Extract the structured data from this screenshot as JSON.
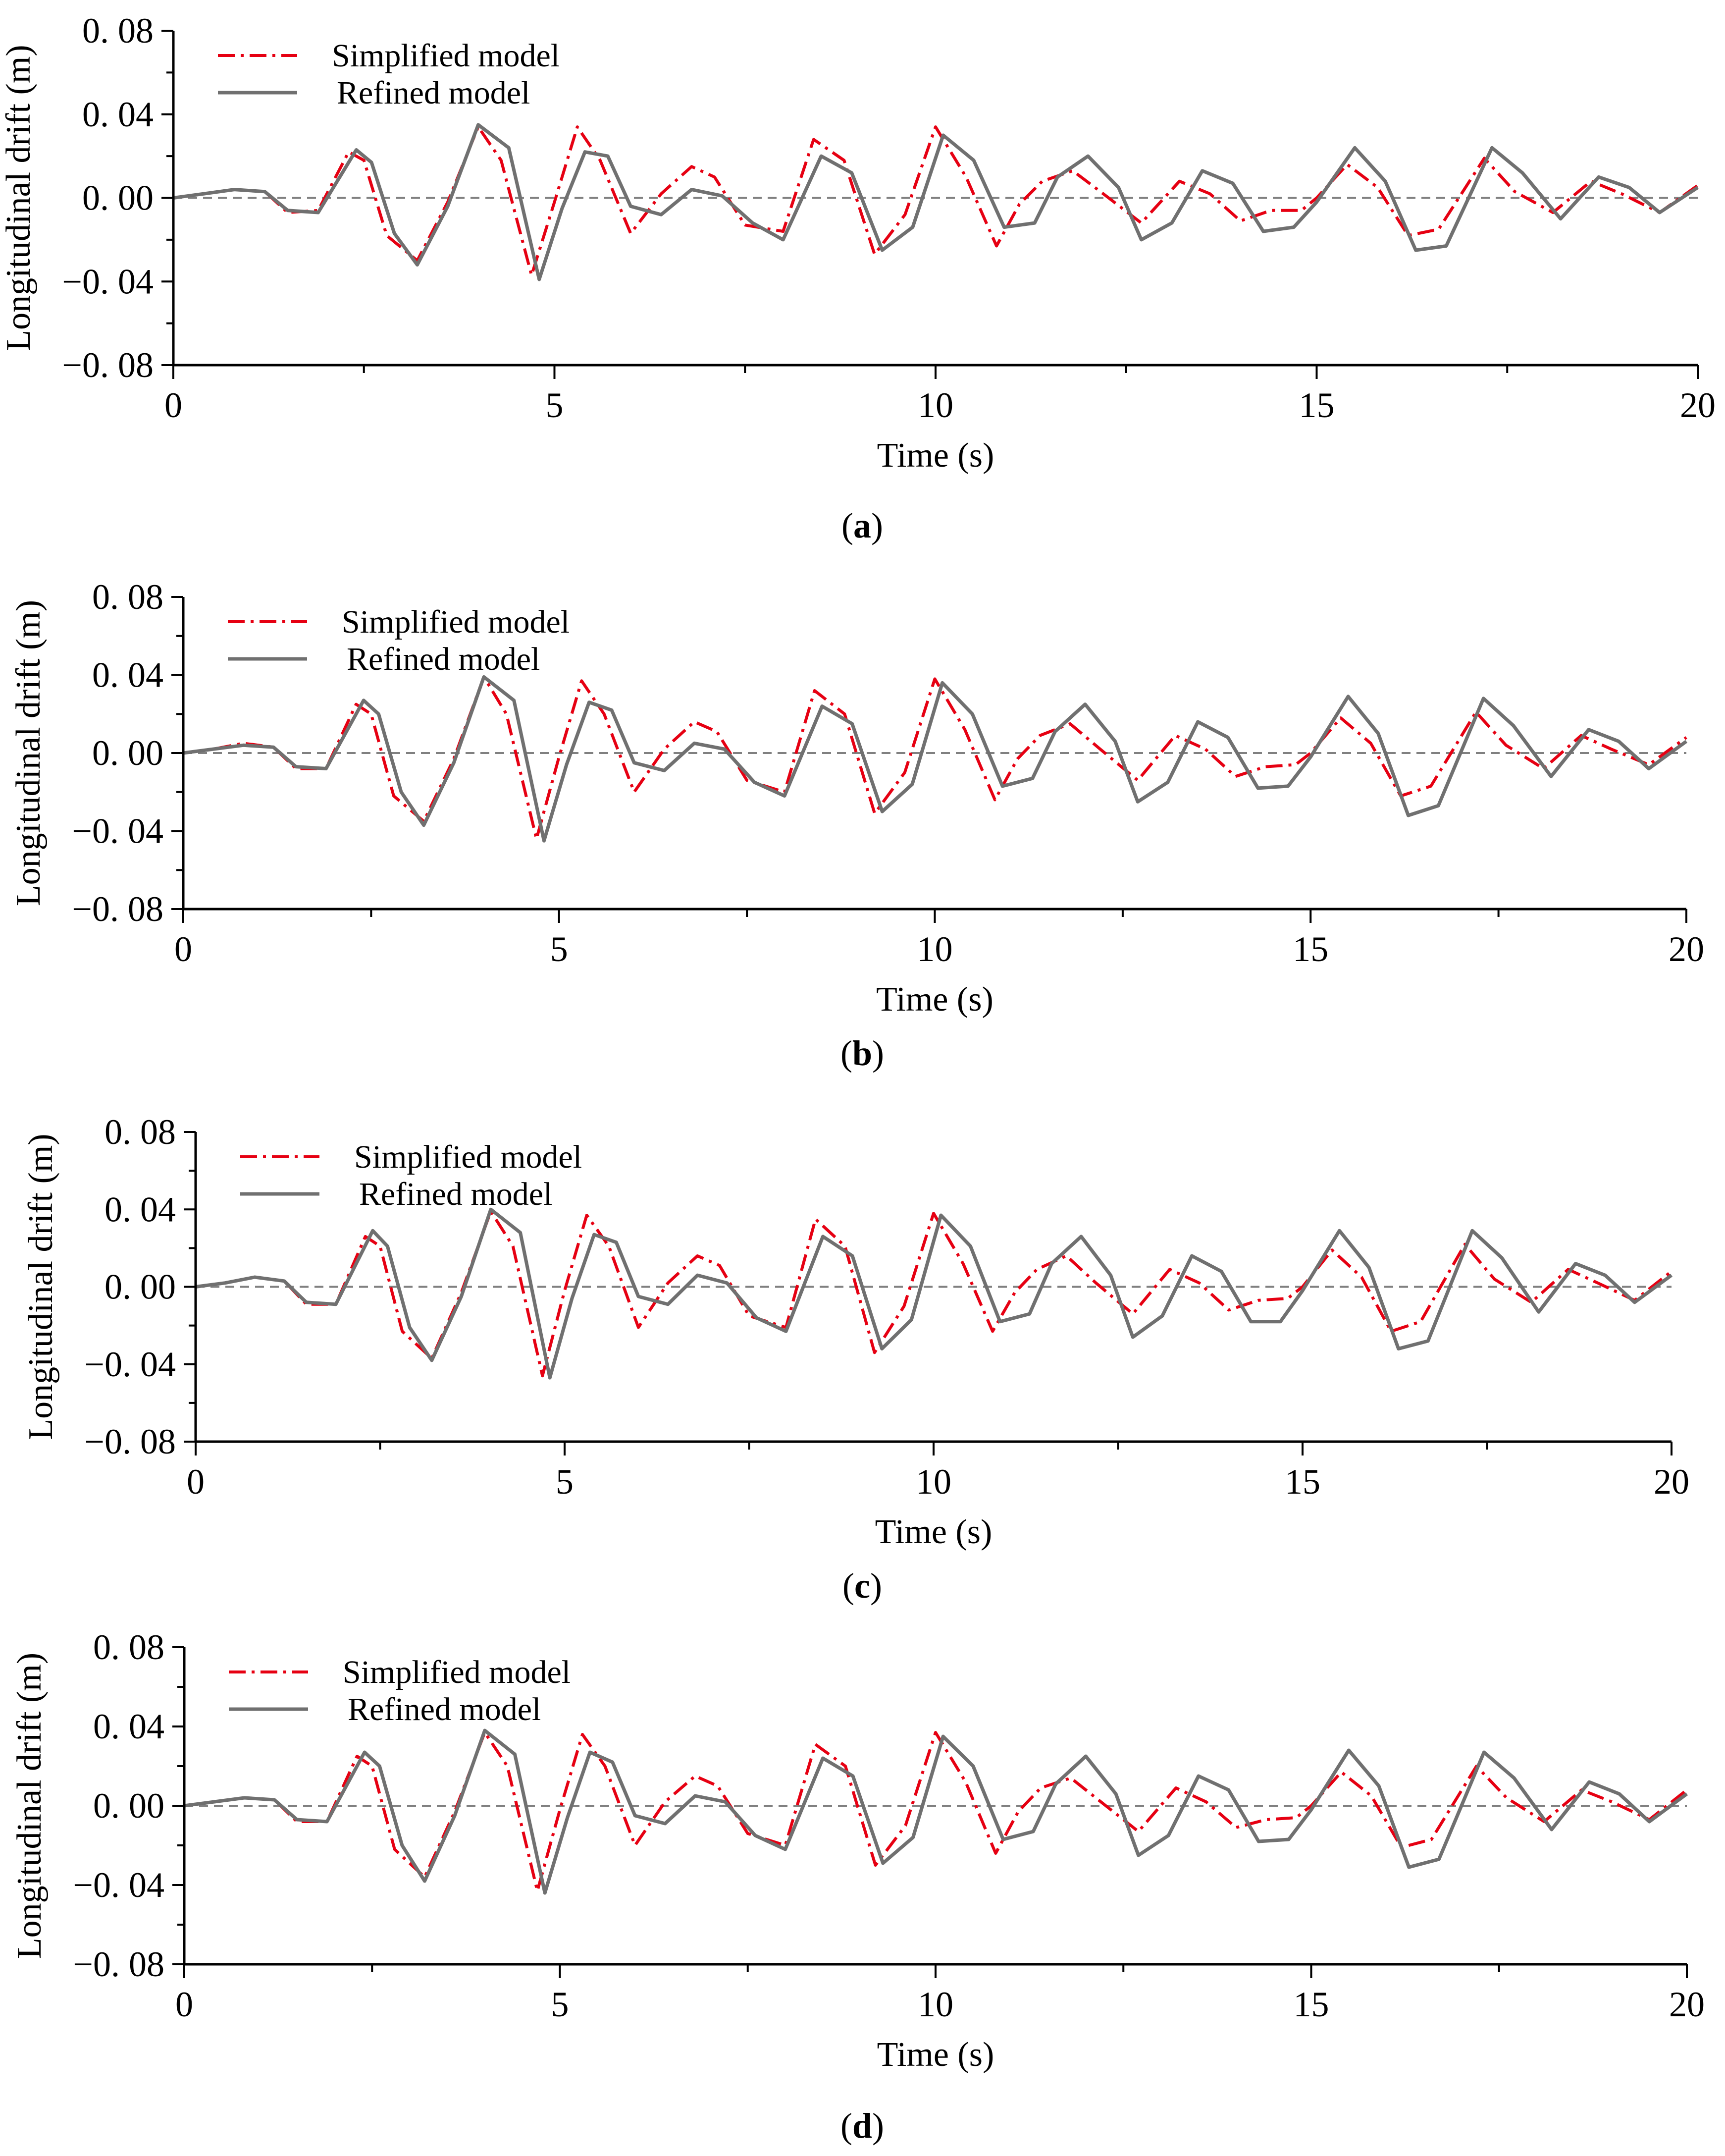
{
  "figure": {
    "captions": [
      "(a)",
      "(b)",
      "(c)",
      "(d)"
    ]
  },
  "colors": {
    "simplified": "#e60012",
    "refined": "#707070",
    "zero_line": "#808080",
    "axis": "#000000"
  },
  "chart_data": [
    {
      "type": "line",
      "caption": "(a)",
      "xlabel": "Time (s)",
      "ylabel": "Longitudinal drift (m)",
      "xlim": [
        0,
        20
      ],
      "ylim": [
        -0.08,
        0.08
      ],
      "xticks": [
        0,
        5,
        10,
        15,
        20
      ],
      "xtick_labels": [
        "0",
        "5",
        "10",
        "15",
        "20"
      ],
      "yticks": [
        -0.08,
        -0.04,
        0.0,
        0.04,
        0.08
      ],
      "ytick_labels": [
        "−0. 08",
        "−0. 04",
        "0. 00",
        "0. 04",
        "0. 08"
      ],
      "legend": {
        "position": "top-left",
        "entries": [
          "Simplified model",
          "Refined model"
        ]
      },
      "series": [
        {
          "name": "Simplified model",
          "style": "dash-dot",
          "x": [
            0,
            0.4,
            0.8,
            1.2,
            1.5,
            1.9,
            2.3,
            2.5,
            2.8,
            3.2,
            3.6,
            4.0,
            4.3,
            4.7,
            5.0,
            5.3,
            5.6,
            6.0,
            6.4,
            6.8,
            7.1,
            7.5,
            8.0,
            8.4,
            8.8,
            9.2,
            9.6,
            10.0,
            10.4,
            10.8,
            11.1,
            11.4,
            11.8,
            12.2,
            12.7,
            13.2,
            13.6,
            14.0,
            14.4,
            14.8,
            15.0,
            15.4,
            15.8,
            16.2,
            16.6,
            17.2,
            17.6,
            18.1,
            18.6,
            19.0,
            19.5,
            20.0
          ],
          "y": [
            0,
            0.002,
            0.004,
            0.003,
            -0.007,
            -0.006,
            0.022,
            0.018,
            -0.018,
            -0.03,
            -0.002,
            0.034,
            0.018,
            -0.037,
            -0.002,
            0.034,
            0.018,
            -0.017,
            0.002,
            0.015,
            0.01,
            -0.013,
            -0.016,
            0.028,
            0.018,
            -0.027,
            -0.008,
            0.034,
            0.01,
            -0.023,
            -0.003,
            0.008,
            0.013,
            0.002,
            -0.012,
            0.008,
            0.002,
            -0.011,
            -0.006,
            -0.006,
            0.0,
            0.016,
            0.005,
            -0.018,
            -0.015,
            0.019,
            0.003,
            -0.007,
            0.008,
            0.002,
            -0.007,
            0.006
          ]
        },
        {
          "name": "Refined model",
          "style": "solid",
          "x": [
            0,
            0.4,
            0.8,
            1.2,
            1.5,
            1.9,
            2.4,
            2.6,
            2.9,
            3.2,
            3.6,
            4.0,
            4.4,
            4.8,
            5.1,
            5.4,
            5.7,
            6.0,
            6.4,
            6.8,
            7.2,
            7.6,
            8.0,
            8.5,
            8.9,
            9.3,
            9.7,
            10.1,
            10.5,
            10.9,
            11.3,
            11.6,
            12.0,
            12.4,
            12.7,
            13.1,
            13.5,
            13.9,
            14.3,
            14.7,
            15.0,
            15.5,
            15.9,
            16.3,
            16.7,
            17.3,
            17.7,
            18.2,
            18.7,
            19.1,
            19.5,
            20.0
          ],
          "y": [
            0,
            0.002,
            0.004,
            0.003,
            -0.006,
            -0.007,
            0.023,
            0.017,
            -0.017,
            -0.032,
            -0.004,
            0.035,
            0.024,
            -0.039,
            -0.005,
            0.022,
            0.02,
            -0.004,
            -0.008,
            0.004,
            0.001,
            -0.012,
            -0.02,
            0.02,
            0.012,
            -0.025,
            -0.014,
            0.03,
            0.018,
            -0.014,
            -0.012,
            0.01,
            0.02,
            0.005,
            -0.02,
            -0.012,
            0.013,
            0.007,
            -0.016,
            -0.014,
            -0.002,
            0.024,
            0.008,
            -0.025,
            -0.023,
            0.024,
            0.012,
            -0.01,
            0.01,
            0.005,
            -0.007,
            0.005
          ]
        }
      ]
    },
    {
      "type": "line",
      "caption": "(b)",
      "xlabel": "Time (s)",
      "ylabel": "Longitudinal drift (m)",
      "xlim": [
        0,
        20
      ],
      "ylim": [
        -0.08,
        0.08
      ],
      "xticks": [
        0,
        5,
        10,
        15,
        20
      ],
      "xtick_labels": [
        "0",
        "5",
        "10",
        "15",
        "20"
      ],
      "yticks": [
        -0.08,
        -0.04,
        0.0,
        0.04,
        0.08
      ],
      "ytick_labels": [
        "−0. 08",
        "−0. 04",
        "0. 00",
        "0. 04",
        "0. 08"
      ],
      "legend": {
        "position": "top-left",
        "entries": [
          "Simplified model",
          "Refined model"
        ]
      },
      "series": [
        {
          "name": "Simplified model",
          "style": "dash-dot",
          "x": [
            0,
            0.4,
            0.8,
            1.2,
            1.5,
            1.9,
            2.3,
            2.5,
            2.8,
            3.2,
            3.6,
            4.0,
            4.3,
            4.7,
            5.0,
            5.3,
            5.6,
            6.0,
            6.4,
            6.8,
            7.1,
            7.5,
            8.0,
            8.4,
            8.8,
            9.2,
            9.6,
            10.0,
            10.4,
            10.8,
            11.1,
            11.4,
            11.8,
            12.2,
            12.7,
            13.2,
            13.6,
            14.0,
            14.4,
            14.8,
            15.0,
            15.4,
            15.8,
            16.2,
            16.6,
            17.2,
            17.6,
            18.1,
            18.6,
            19.0,
            19.5,
            20.0
          ],
          "y": [
            0,
            0.002,
            0.005,
            0.003,
            -0.008,
            -0.008,
            0.025,
            0.02,
            -0.022,
            -0.035,
            -0.003,
            0.039,
            0.02,
            -0.044,
            -0.002,
            0.037,
            0.02,
            -0.02,
            0.002,
            0.016,
            0.011,
            -0.014,
            -0.02,
            0.032,
            0.02,
            -0.031,
            -0.01,
            0.038,
            0.012,
            -0.024,
            -0.003,
            0.009,
            0.015,
            0.002,
            -0.014,
            0.009,
            0.002,
            -0.012,
            -0.007,
            -0.006,
            0.0,
            0.018,
            0.005,
            -0.022,
            -0.017,
            0.021,
            0.004,
            -0.008,
            0.009,
            0.002,
            -0.006,
            0.008
          ]
        },
        {
          "name": "Refined model",
          "style": "solid",
          "x": [
            0,
            0.4,
            0.8,
            1.2,
            1.5,
            1.9,
            2.4,
            2.6,
            2.9,
            3.2,
            3.6,
            4.0,
            4.4,
            4.8,
            5.1,
            5.4,
            5.7,
            6.0,
            6.4,
            6.8,
            7.2,
            7.6,
            8.0,
            8.5,
            8.9,
            9.3,
            9.7,
            10.1,
            10.5,
            10.9,
            11.3,
            11.6,
            12.0,
            12.4,
            12.7,
            13.1,
            13.5,
            13.9,
            14.3,
            14.7,
            15.0,
            15.5,
            15.9,
            16.3,
            16.7,
            17.3,
            17.7,
            18.2,
            18.7,
            19.1,
            19.5,
            20.0
          ],
          "y": [
            0,
            0.002,
            0.004,
            0.003,
            -0.007,
            -0.008,
            0.027,
            0.02,
            -0.02,
            -0.037,
            -0.005,
            0.039,
            0.027,
            -0.045,
            -0.006,
            0.026,
            0.022,
            -0.005,
            -0.009,
            0.005,
            0.002,
            -0.015,
            -0.022,
            0.024,
            0.015,
            -0.03,
            -0.016,
            0.036,
            0.02,
            -0.017,
            -0.013,
            0.011,
            0.025,
            0.006,
            -0.025,
            -0.015,
            0.016,
            0.008,
            -0.018,
            -0.017,
            -0.002,
            0.029,
            0.01,
            -0.032,
            -0.027,
            0.028,
            0.014,
            -0.012,
            0.012,
            0.006,
            -0.008,
            0.006
          ]
        }
      ]
    },
    {
      "type": "line",
      "caption": "(c)",
      "xlabel": "Time (s)",
      "ylabel": "Longitudinal drift (m)",
      "xlim": [
        0,
        20
      ],
      "ylim": [
        -0.08,
        0.08
      ],
      "xticks": [
        0,
        5,
        10,
        15,
        20
      ],
      "xtick_labels": [
        "0",
        "5",
        "10",
        "15",
        "20"
      ],
      "yticks": [
        -0.08,
        -0.04,
        0.0,
        0.04,
        0.08
      ],
      "ytick_labels": [
        "−0. 08",
        "−0. 04",
        "0. 00",
        "0. 04",
        "0. 08"
      ],
      "legend": {
        "position": "top-left",
        "entries": [
          "Simplified model",
          "Refined model"
        ]
      },
      "series": [
        {
          "name": "Simplified model",
          "style": "dash-dot",
          "x": [
            0,
            0.4,
            0.8,
            1.2,
            1.5,
            1.9,
            2.3,
            2.5,
            2.8,
            3.2,
            3.6,
            4.0,
            4.3,
            4.7,
            5.0,
            5.3,
            5.6,
            6.0,
            6.4,
            6.8,
            7.1,
            7.5,
            8.0,
            8.4,
            8.8,
            9.2,
            9.6,
            10.0,
            10.4,
            10.8,
            11.1,
            11.4,
            11.8,
            12.2,
            12.7,
            13.2,
            13.6,
            14.0,
            14.4,
            14.8,
            15.0,
            15.4,
            15.8,
            16.2,
            16.6,
            17.2,
            17.6,
            18.1,
            18.6,
            19.0,
            19.5,
            20.0
          ],
          "y": [
            0,
            0.002,
            0.005,
            0.003,
            -0.009,
            -0.009,
            0.026,
            0.021,
            -0.023,
            -0.037,
            -0.003,
            0.039,
            0.021,
            -0.046,
            -0.002,
            0.037,
            0.021,
            -0.021,
            0.002,
            0.016,
            0.011,
            -0.015,
            -0.021,
            0.035,
            0.021,
            -0.034,
            -0.01,
            0.038,
            0.012,
            -0.023,
            -0.003,
            0.009,
            0.016,
            0.002,
            -0.014,
            0.009,
            0.002,
            -0.012,
            -0.007,
            -0.006,
            0.0,
            0.019,
            0.005,
            -0.023,
            -0.018,
            0.022,
            0.004,
            -0.008,
            0.009,
            0.002,
            -0.007,
            0.008
          ]
        },
        {
          "name": "Refined model",
          "style": "solid",
          "x": [
            0,
            0.4,
            0.8,
            1.2,
            1.5,
            1.9,
            2.4,
            2.6,
            2.9,
            3.2,
            3.6,
            4.0,
            4.4,
            4.8,
            5.1,
            5.4,
            5.7,
            6.0,
            6.4,
            6.8,
            7.2,
            7.6,
            8.0,
            8.5,
            8.9,
            9.3,
            9.7,
            10.1,
            10.5,
            10.9,
            11.3,
            11.6,
            12.0,
            12.4,
            12.7,
            13.1,
            13.5,
            13.9,
            14.3,
            14.7,
            15.0,
            15.5,
            15.9,
            16.3,
            16.7,
            17.3,
            17.7,
            18.2,
            18.7,
            19.1,
            19.5,
            20.0
          ],
          "y": [
            0,
            0.002,
            0.005,
            0.003,
            -0.008,
            -0.009,
            0.029,
            0.021,
            -0.021,
            -0.038,
            -0.005,
            0.04,
            0.028,
            -0.047,
            -0.006,
            0.027,
            0.023,
            -0.005,
            -0.009,
            0.006,
            0.002,
            -0.016,
            -0.023,
            0.026,
            0.016,
            -0.032,
            -0.017,
            0.037,
            0.021,
            -0.018,
            -0.014,
            0.012,
            0.026,
            0.006,
            -0.026,
            -0.015,
            0.016,
            0.008,
            -0.018,
            -0.018,
            -0.002,
            0.029,
            0.01,
            -0.032,
            -0.028,
            0.029,
            0.015,
            -0.013,
            0.012,
            0.006,
            -0.008,
            0.006
          ]
        }
      ]
    },
    {
      "type": "line",
      "caption": "(d)",
      "xlabel": "Time (s)",
      "ylabel": "Longitudinal drift (m)",
      "xlim": [
        0,
        20
      ],
      "ylim": [
        -0.08,
        0.08
      ],
      "xticks": [
        0,
        5,
        10,
        15,
        20
      ],
      "xtick_labels": [
        "0",
        "5",
        "10",
        "15",
        "20"
      ],
      "yticks": [
        -0.08,
        -0.04,
        0.0,
        0.04,
        0.08
      ],
      "ytick_labels": [
        "−0. 08",
        "−0. 04",
        "0. 00",
        "0. 04",
        "0. 08"
      ],
      "legend": {
        "position": "top-left",
        "entries": [
          "Simplified model",
          "Refined model"
        ]
      },
      "series": [
        {
          "name": "Simplified model",
          "style": "dash-dot",
          "x": [
            0,
            0.4,
            0.8,
            1.2,
            1.5,
            1.9,
            2.3,
            2.5,
            2.8,
            3.2,
            3.6,
            4.0,
            4.3,
            4.7,
            5.0,
            5.3,
            5.6,
            6.0,
            6.4,
            6.8,
            7.1,
            7.5,
            8.0,
            8.4,
            8.8,
            9.2,
            9.6,
            10.0,
            10.4,
            10.8,
            11.1,
            11.4,
            11.8,
            12.2,
            12.7,
            13.2,
            13.6,
            14.0,
            14.4,
            14.8,
            15.0,
            15.4,
            15.8,
            16.2,
            16.6,
            17.2,
            17.6,
            18.1,
            18.6,
            19.0,
            19.5,
            20.0
          ],
          "y": [
            0,
            0.002,
            0.004,
            0.003,
            -0.008,
            -0.008,
            0.025,
            0.02,
            -0.022,
            -0.036,
            -0.003,
            0.037,
            0.02,
            -0.043,
            -0.002,
            0.036,
            0.02,
            -0.02,
            0.002,
            0.015,
            0.01,
            -0.014,
            -0.02,
            0.031,
            0.02,
            -0.03,
            -0.01,
            0.037,
            0.012,
            -0.024,
            -0.003,
            0.009,
            0.014,
            0.002,
            -0.013,
            0.009,
            0.002,
            -0.011,
            -0.007,
            -0.006,
            0.0,
            0.017,
            0.005,
            -0.021,
            -0.017,
            0.02,
            0.004,
            -0.008,
            0.008,
            0.002,
            -0.007,
            0.008
          ]
        },
        {
          "name": "Refined model",
          "style": "solid",
          "x": [
            0,
            0.4,
            0.8,
            1.2,
            1.5,
            1.9,
            2.4,
            2.6,
            2.9,
            3.2,
            3.6,
            4.0,
            4.4,
            4.8,
            5.1,
            5.4,
            5.7,
            6.0,
            6.4,
            6.8,
            7.2,
            7.6,
            8.0,
            8.5,
            8.9,
            9.3,
            9.7,
            10.1,
            10.5,
            10.9,
            11.3,
            11.6,
            12.0,
            12.4,
            12.7,
            13.1,
            13.5,
            13.9,
            14.3,
            14.7,
            15.0,
            15.5,
            15.9,
            16.3,
            16.7,
            17.3,
            17.7,
            18.2,
            18.7,
            19.1,
            19.5,
            20.0
          ],
          "y": [
            0,
            0.002,
            0.004,
            0.003,
            -0.007,
            -0.008,
            0.027,
            0.02,
            -0.02,
            -0.038,
            -0.005,
            0.038,
            0.026,
            -0.044,
            -0.006,
            0.027,
            0.022,
            -0.005,
            -0.009,
            0.005,
            0.002,
            -0.015,
            -0.022,
            0.024,
            0.015,
            -0.029,
            -0.016,
            0.035,
            0.02,
            -0.017,
            -0.013,
            0.011,
            0.025,
            0.006,
            -0.025,
            -0.015,
            0.015,
            0.008,
            -0.018,
            -0.017,
            -0.002,
            0.028,
            0.01,
            -0.031,
            -0.027,
            0.027,
            0.014,
            -0.012,
            0.012,
            0.006,
            -0.008,
            0.006
          ]
        }
      ]
    }
  ]
}
